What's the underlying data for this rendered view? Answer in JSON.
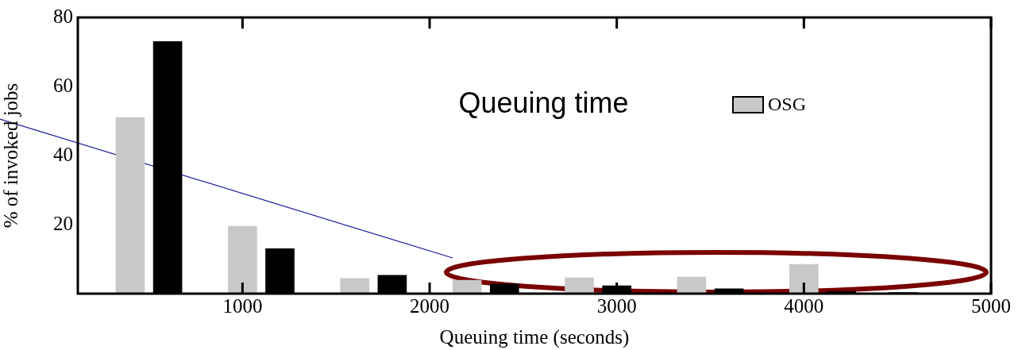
{
  "chart_data": {
    "type": "bar",
    "xlabel": "Queuing time (seconds)",
    "ylabel": "% of invoked jobs",
    "annotations": [
      "Queuing time"
    ],
    "series": [
      {
        "color": "#000000",
        "x": [
          600,
          1200,
          1800,
          2400,
          3000,
          3600,
          4200,
          4530
        ],
        "values": [
          73,
          13,
          5.3,
          2.8,
          2.3,
          1.4,
          0.7,
          0.3
        ]
      },
      {
        "name": "OSG",
        "color": "#c8c8c8",
        "x": [
          400,
          1000,
          1600,
          2200,
          2800,
          3400,
          4000
        ],
        "values": [
          51,
          19.5,
          4.4,
          3.9,
          4.6,
          4.8,
          8.5
        ]
      }
    ],
    "xlim": [
      120,
      5000
    ],
    "xticks": [
      1000,
      2000,
      3000,
      4000,
      5000
    ],
    "ylim": [
      0,
      80
    ],
    "yticks": [
      20,
      40,
      60,
      80
    ],
    "grid": false,
    "legend": "top right"
  }
}
